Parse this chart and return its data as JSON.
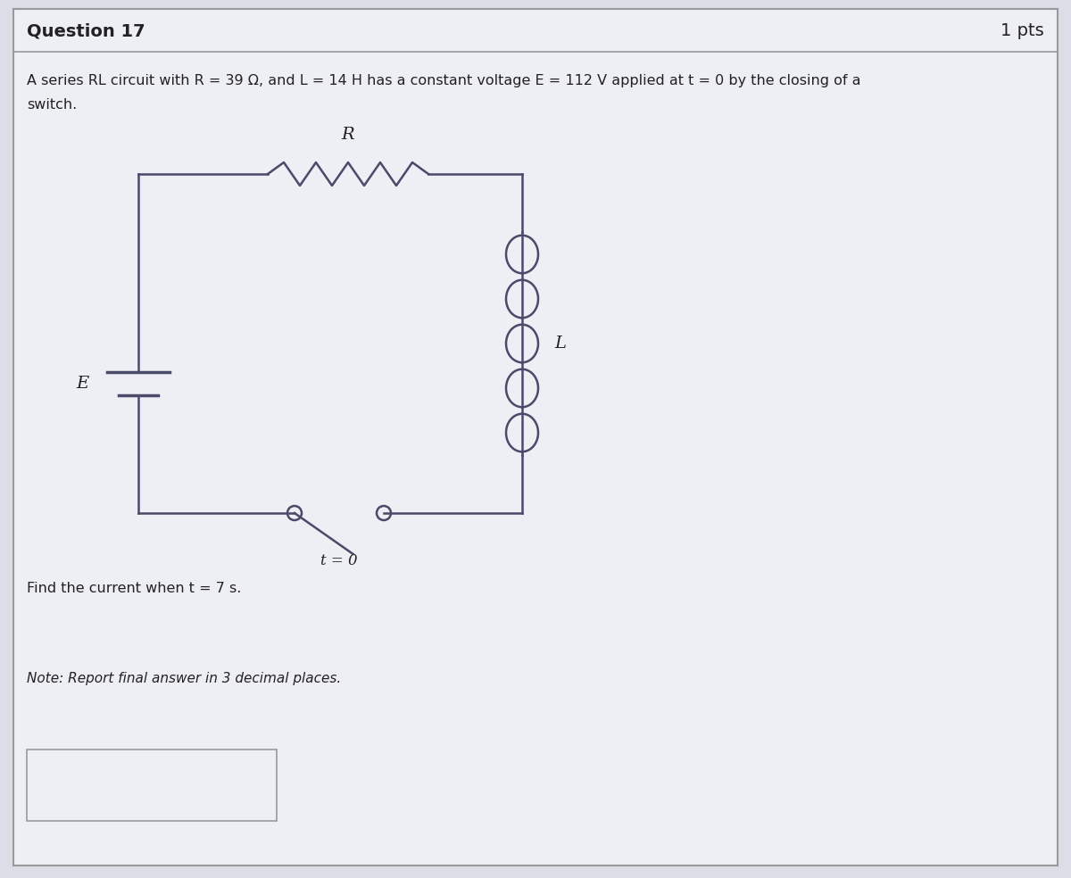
{
  "title": "Question 17",
  "pts": "1 pts",
  "description_line1": "A series RL circuit with R = 39 Ω, and L = 14 H has a constant voltage E = 112 V applied at t = 0 by the closing of a",
  "description_line2": "switch.",
  "find_text": "Find the current when t = 7 s.",
  "note_text": "Note: Report final answer in 3 decimal places.",
  "bg_color": "#dddde8",
  "card_color": "#eeeef5",
  "border_color": "#999999",
  "circuit_color": "#4a4a6a",
  "text_color": "#222222",
  "title_fontsize": 14,
  "body_fontsize": 11.5,
  "note_fontsize": 11
}
